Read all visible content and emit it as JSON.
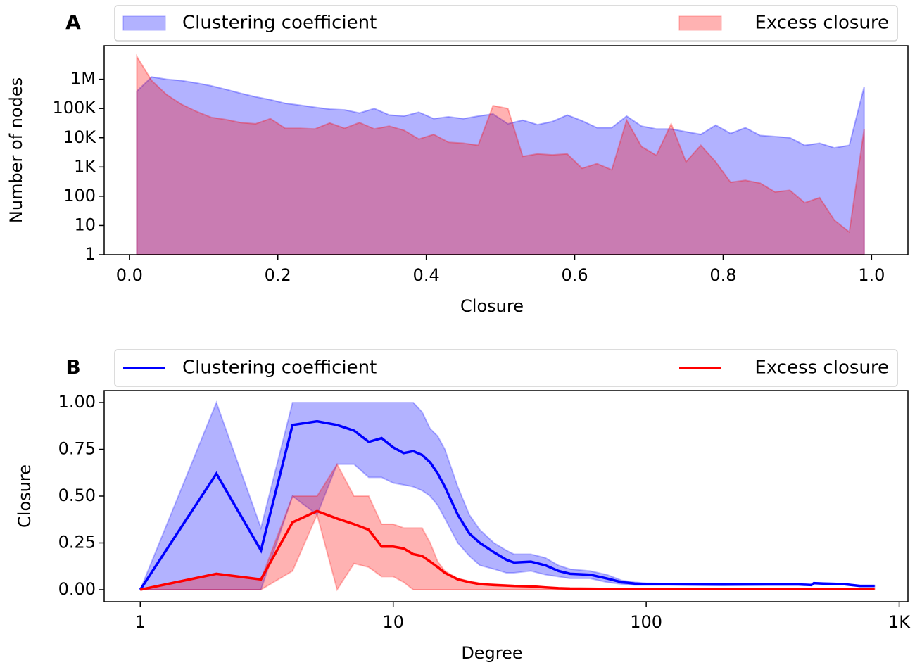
{
  "chart_data": [
    {
      "type": "area",
      "panel_label": "A",
      "xlabel": "Closure",
      "ylabel": "Number of nodes",
      "yscale": "log",
      "x": [
        0.01,
        0.03,
        0.05,
        0.07,
        0.09,
        0.11,
        0.13,
        0.15,
        0.17,
        0.19,
        0.21,
        0.23,
        0.25,
        0.27,
        0.29,
        0.31,
        0.33,
        0.35,
        0.37,
        0.39,
        0.41,
        0.43,
        0.45,
        0.47,
        0.49,
        0.51,
        0.53,
        0.55,
        0.57,
        0.59,
        0.61,
        0.63,
        0.65,
        0.67,
        0.69,
        0.71,
        0.73,
        0.75,
        0.77,
        0.79,
        0.81,
        0.83,
        0.85,
        0.87,
        0.89,
        0.91,
        0.93,
        0.95,
        0.97,
        0.99
      ],
      "series": [
        {
          "name": "Clustering coefficient",
          "color": "#0000ff",
          "values": [
            390000,
            1200000,
            1000000,
            900000,
            750000,
            600000,
            450000,
            330000,
            250000,
            200000,
            150000,
            130000,
            110000,
            95000,
            90000,
            70000,
            100000,
            60000,
            55000,
            75000,
            45000,
            52000,
            45000,
            55000,
            65000,
            30000,
            40000,
            28000,
            36000,
            60000,
            38000,
            22000,
            22000,
            55000,
            25000,
            20000,
            20000,
            16000,
            13000,
            27000,
            14000,
            22000,
            12000,
            11000,
            10000,
            5500,
            6500,
            4500,
            5500,
            550000
          ]
        },
        {
          "name": "Excess closure",
          "color": "#ff0000",
          "values": [
            6000000,
            900000,
            300000,
            140000,
            80000,
            50000,
            42000,
            33000,
            30000,
            45000,
            21000,
            21000,
            20000,
            32000,
            21000,
            33000,
            20000,
            25000,
            18000,
            9000,
            13000,
            7000,
            6500,
            5500,
            125000,
            100000,
            2300,
            2800,
            2600,
            2800,
            900,
            1300,
            800,
            40000,
            5000,
            2500,
            30000,
            1500,
            5500,
            1500,
            300,
            350,
            280,
            140,
            160,
            60,
            90,
            15,
            6,
            20000
          ]
        }
      ],
      "xlim": [
        -0.034,
        1.049
      ],
      "ylim": [
        1,
        14000000
      ],
      "xticks": [
        {
          "value": 0,
          "label": "0.0"
        },
        0.2,
        0.4,
        0.6,
        0.8,
        {
          "value": 1,
          "label": "1.0"
        }
      ],
      "yticks": [
        1,
        10,
        100,
        {
          "value": 1000,
          "label": "1K"
        },
        {
          "value": 10000,
          "label": "10K"
        },
        {
          "value": 100000,
          "label": "100K"
        },
        {
          "value": 1000000,
          "label": "1M"
        }
      ]
    },
    {
      "type": "line",
      "panel_label": "B",
      "xlabel": "Degree",
      "ylabel": "Closure",
      "xscale": "log",
      "x": [
        1,
        2,
        3,
        4,
        5,
        6,
        7,
        8,
        9,
        10,
        11,
        12,
        13,
        14,
        15,
        16,
        18,
        20,
        22,
        25,
        28,
        30,
        35,
        40,
        45,
        50,
        60,
        70,
        80,
        90,
        100,
        150,
        200,
        300,
        400,
        450,
        460,
        500,
        600,
        700,
        800
      ],
      "series": [
        {
          "name": "Clustering coefficient",
          "color": "#0000ff",
          "values": [
            0,
            0.62,
            0.21,
            0.88,
            0.9,
            0.88,
            0.85,
            0.79,
            0.81,
            0.76,
            0.73,
            0.74,
            0.72,
            0.68,
            0.62,
            0.55,
            0.4,
            0.3,
            0.25,
            0.2,
            0.16,
            0.145,
            0.15,
            0.13,
            0.1,
            0.085,
            0.08,
            0.06,
            0.04,
            0.033,
            0.03,
            0.028,
            0.027,
            0.028,
            0.028,
            0.025,
            0.035,
            0.033,
            0.03,
            0.02,
            0.02
          ],
          "lower": [
            0,
            0,
            0,
            0.5,
            0.4,
            0.67,
            0.67,
            0.6,
            0.6,
            0.57,
            0.56,
            0.55,
            0.53,
            0.5,
            0.45,
            0.38,
            0.25,
            0.18,
            0.13,
            0.11,
            0.09,
            0.09,
            0.1,
            0.08,
            0.07,
            0.06,
            0.06,
            0.04,
            0.03,
            0.025,
            0.025,
            0.025,
            0.024,
            0.025,
            0.025,
            0.022,
            0.032,
            0.03,
            0.027,
            0.017,
            0.017
          ],
          "upper": [
            0,
            1,
            0.33,
            1,
            1,
            1,
            1,
            1,
            1,
            1,
            1,
            1,
            0.95,
            0.86,
            0.82,
            0.75,
            0.55,
            0.4,
            0.32,
            0.25,
            0.21,
            0.19,
            0.19,
            0.17,
            0.13,
            0.11,
            0.1,
            0.08,
            0.05,
            0.04,
            0.035,
            0.031,
            0.03,
            0.031,
            0.031,
            0.028,
            0.038,
            0.036,
            0.033,
            0.023,
            0.023
          ]
        },
        {
          "name": "Excess closure",
          "color": "#ff0000",
          "values": [
            0,
            0.085,
            0.055,
            0.36,
            0.42,
            0.38,
            0.35,
            0.32,
            0.23,
            0.23,
            0.22,
            0.19,
            0.18,
            0.15,
            0.12,
            0.09,
            0.055,
            0.04,
            0.03,
            0.025,
            0.022,
            0.02,
            0.018,
            0.012,
            0.008,
            0.006,
            0.005,
            0.004,
            0.003,
            0.003,
            0.003,
            0.003,
            0.003,
            0.003,
            0.003,
            0.003,
            0.003,
            0.003,
            0.003,
            0.003,
            0.003
          ],
          "lower": [
            0,
            0,
            0,
            0.1,
            0.4,
            0,
            0.14,
            0.12,
            0.07,
            0.07,
            0.04,
            0,
            0,
            0,
            0,
            0,
            0,
            0,
            0,
            0,
            0,
            0,
            0,
            0,
            0,
            0,
            0,
            0,
            0,
            0,
            0,
            0,
            0,
            0,
            0,
            0,
            0,
            0,
            0,
            0,
            0
          ],
          "upper": [
            0,
            0.085,
            0.055,
            0.5,
            0.5,
            0.67,
            0.5,
            0.5,
            0.35,
            0.35,
            0.33,
            0.33,
            0.33,
            0.25,
            0.15,
            0.1,
            0.06,
            0.045,
            0.035,
            0.03,
            0.025,
            0.022,
            0.02,
            0.014,
            0.01,
            0.008,
            0.006,
            0.005,
            0.004,
            0.004,
            0.004,
            0.004,
            0.004,
            0.004,
            0.004,
            0.004,
            0.004,
            0.004,
            0.004,
            0.004,
            0.004
          ]
        }
      ],
      "xlim": [
        0.72,
        1083
      ],
      "ylim": [
        -0.064,
        1.064
      ],
      "xticks": [
        1,
        10,
        100,
        {
          "value": 1000,
          "label": "1K"
        }
      ],
      "yticks": [
        {
          "value": 0,
          "label": "0.00"
        },
        {
          "value": 0.25,
          "label": "0.25"
        },
        {
          "value": 0.5,
          "label": "0.50"
        },
        {
          "value": 0.75,
          "label": "0.75"
        },
        {
          "value": 1,
          "label": "1.00"
        }
      ]
    }
  ]
}
